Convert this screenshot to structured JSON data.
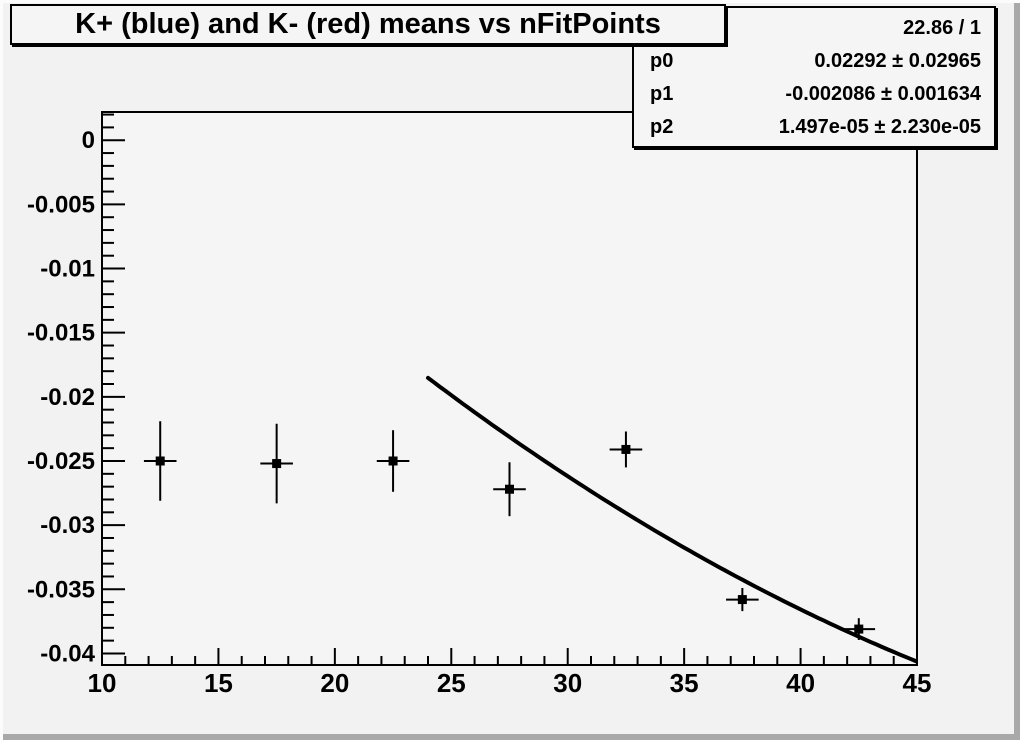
{
  "canvas": {
    "title": "K+ (blue) and K- (red) means vs nFitPoints",
    "colors": {
      "background": "#f2f2f2",
      "frame_background": "#f5f5f5",
      "box_background": "#f5f5f5",
      "line": "#000000",
      "bevel_light": "#fcfcfc",
      "bevel_dark": "#a9a9a9"
    }
  },
  "stats_box": {
    "chi2": "22.86 / 1",
    "rows": [
      {
        "label": "p0",
        "value": "0.02292 ± 0.02965"
      },
      {
        "label": "p1",
        "value": "-0.002086 ± 0.001634"
      },
      {
        "label": "p2",
        "value": "1.497e-05 ± 2.230e-05"
      }
    ]
  },
  "chart_data": {
    "type": "scatter",
    "title": "K+ (blue) and K- (red) means vs nFitPoints",
    "xlabel": "",
    "ylabel": "",
    "xlim": [
      10,
      45
    ],
    "ylim": [
      -0.0409,
      0.0022
    ],
    "grid": false,
    "legend": false,
    "marker": "filled-square",
    "series": [
      {
        "name": "",
        "color": "#000000",
        "x": [
          12.5,
          17.5,
          22.5,
          27.5,
          32.5,
          37.5,
          42.5
        ],
        "y": [
          -0.025,
          -0.0252,
          -0.025,
          -0.0272,
          -0.0241,
          -0.0358,
          -0.0381
        ],
        "ey": [
          0.0031,
          0.0031,
          0.0024,
          0.0021,
          0.0014,
          0.0009,
          0.00085
        ],
        "ex": 0.7
      }
    ],
    "fit": {
      "function": "p0 + p1*x + p2*x^2",
      "p0": 0.02292,
      "p1": -0.002086,
      "p2": 1.497e-05,
      "p0_err": 0.02965,
      "p1_err": 0.001634,
      "p2_err": 2.23e-05,
      "range": [
        24,
        45
      ],
      "chi2_ndf": "22.86 / 1",
      "color": "#000000"
    },
    "x_ticks": {
      "major": [
        10,
        15,
        20,
        25,
        30,
        35,
        40,
        45
      ],
      "labels": [
        "10",
        "15",
        "20",
        "25",
        "30",
        "35",
        "40",
        "45"
      ],
      "minor_step": 1
    },
    "y_ticks": {
      "major": [
        0,
        -0.005,
        -0.01,
        -0.015,
        -0.02,
        -0.025,
        -0.03,
        -0.035,
        -0.04
      ],
      "labels": [
        "0",
        "-0.005",
        "-0.01",
        "-0.015",
        "-0.02",
        "-0.025",
        "-0.03",
        "-0.035",
        "-0.04"
      ],
      "minor_step": 0.001
    }
  }
}
